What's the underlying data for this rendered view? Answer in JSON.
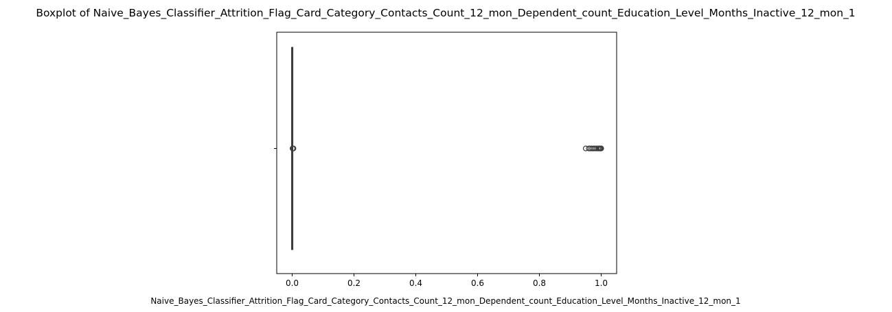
{
  "chart_data": {
    "type": "boxplot",
    "orientation": "horizontal",
    "title": "Boxplot of Naive_Bayes_Classifier_Attrition_Flag_Card_Category_Contacts_Count_12_mon_Dependent_count_Education_Level_Months_Inactive_12_mon_1",
    "xlabel": "Naive_Bayes_Classifier_Attrition_Flag_Card_Category_Contacts_Count_12_mon_Dependent_count_Education_Level_Months_Inactive_12_mon_1",
    "ylabel": "",
    "xlim": [
      -0.05,
      1.05
    ],
    "xticks": [
      0.0,
      0.2,
      0.4,
      0.6,
      0.8,
      1.0
    ],
    "xtick_labels": [
      "0.0",
      "0.2",
      "0.4",
      "0.6",
      "0.8",
      "1.0"
    ],
    "grid": false,
    "box": {
      "q1": 0.0,
      "median": 0.0001,
      "q3": 0.0002,
      "whisker_low": 0.0,
      "whisker_high": 0.0006
    },
    "outliers": [
      0.0012,
      0.0025,
      0.004,
      0.95,
      0.96,
      0.965,
      0.97,
      0.975,
      0.98,
      0.985,
      0.99,
      0.993,
      0.996,
      0.998,
      0.999,
      1.0
    ],
    "colors": {
      "box": "#3d3d3d",
      "outlier": "#3d3d3d",
      "axis": "#000000"
    }
  }
}
